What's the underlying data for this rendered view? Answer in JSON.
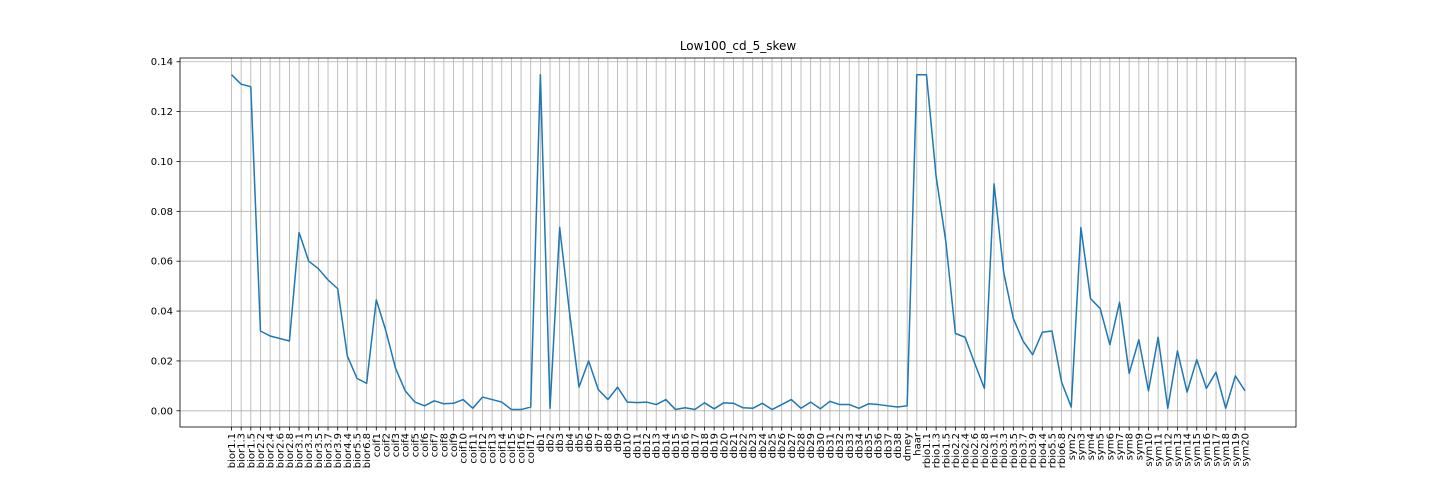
{
  "chart_data": {
    "type": "line",
    "title": "Low100_cd_5_skew",
    "xlabel": "",
    "ylabel": "",
    "ylim": [
      -0.0065,
      0.1415
    ],
    "grid": true,
    "line_color": "#1f77b4",
    "y_ticks": [
      "0.00",
      "0.02",
      "0.04",
      "0.06",
      "0.08",
      "0.10",
      "0.12",
      "0.14"
    ],
    "y_tick_values": [
      0,
      0.02,
      0.04,
      0.06,
      0.08,
      0.1,
      0.12,
      0.14
    ],
    "categories": [
      "bior1.1",
      "bior1.3",
      "bior1.5",
      "bior2.2",
      "bior2.4",
      "bior2.6",
      "bior2.8",
      "bior3.1",
      "bior3.3",
      "bior3.5",
      "bior3.7",
      "bior3.9",
      "bior4.4",
      "bior5.5",
      "bior6.8",
      "coif1",
      "coif2",
      "coif3",
      "coif4",
      "coif5",
      "coif6",
      "coif7",
      "coif8",
      "coif9",
      "coif10",
      "coif11",
      "coif12",
      "coif13",
      "coif14",
      "coif15",
      "coif16",
      "coif17",
      "db1",
      "db2",
      "db3",
      "db4",
      "db5",
      "db6",
      "db7",
      "db8",
      "db9",
      "db10",
      "db11",
      "db12",
      "db13",
      "db14",
      "db15",
      "db16",
      "db17",
      "db18",
      "db19",
      "db20",
      "db21",
      "db22",
      "db23",
      "db24",
      "db25",
      "db26",
      "db27",
      "db28",
      "db29",
      "db30",
      "db31",
      "db32",
      "db33",
      "db34",
      "db35",
      "db36",
      "db37",
      "db38",
      "dmey",
      "haar",
      "rbio1.1",
      "rbio1.3",
      "rbio1.5",
      "rbio2.2",
      "rbio2.4",
      "rbio2.6",
      "rbio2.8",
      "rbio3.1",
      "rbio3.3",
      "rbio3.5",
      "rbio3.7",
      "rbio3.9",
      "rbio4.4",
      "rbio5.5",
      "rbio6.8",
      "sym2",
      "sym3",
      "sym4",
      "sym5",
      "sym6",
      "sym7",
      "sym8",
      "sym9",
      "sym10",
      "sym11",
      "sym12",
      "sym13",
      "sym14",
      "sym15",
      "sym16",
      "sym17",
      "sym18",
      "sym19",
      "sym20"
    ],
    "values": [
      0.1348,
      0.131,
      0.13,
      0.032,
      0.03,
      0.029,
      0.028,
      0.0715,
      0.06,
      0.057,
      0.0525,
      0.049,
      0.022,
      0.013,
      0.011,
      0.0445,
      0.032,
      0.017,
      0.008,
      0.0035,
      0.002,
      0.004,
      0.0028,
      0.003,
      0.0045,
      0.001,
      0.0055,
      0.0045,
      0.0035,
      0.0005,
      0.0005,
      0.0015,
      0.1348,
      0.001,
      0.0735,
      0.04,
      0.0095,
      0.02,
      0.0085,
      0.0045,
      0.0095,
      0.0035,
      0.0033,
      0.0035,
      0.0025,
      0.0045,
      0.0005,
      0.0012,
      0.0005,
      0.0032,
      0.0008,
      0.0032,
      0.003,
      0.0012,
      0.001,
      0.003,
      0.0005,
      0.0025,
      0.0045,
      0.001,
      0.0035,
      0.0008,
      0.0038,
      0.0025,
      0.0025,
      0.001,
      0.0028,
      0.0025,
      0.002,
      0.0015,
      0.002,
      0.1348,
      0.1348,
      0.094,
      0.068,
      0.031,
      0.0295,
      0.019,
      0.009,
      0.091,
      0.0555,
      0.037,
      0.028,
      0.0225,
      0.0315,
      0.032,
      0.0115,
      0.0015,
      0.0735,
      0.045,
      0.041,
      0.0265,
      0.0435,
      0.015,
      0.0285,
      0.008,
      0.0295,
      0.001,
      0.024,
      0.0075,
      0.0205,
      0.009,
      0.0155,
      0.001,
      0.014,
      0.008
    ]
  }
}
